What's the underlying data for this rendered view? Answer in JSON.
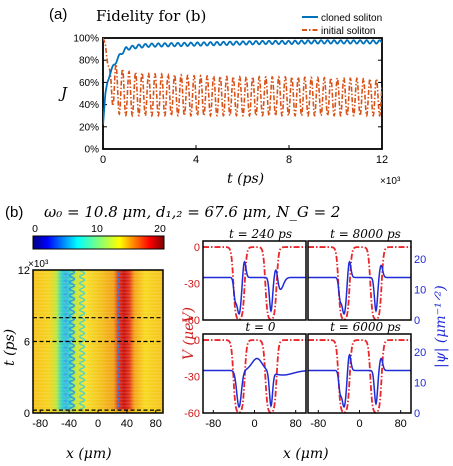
{
  "colors": {
    "cloned": "#0072BD",
    "initial": "#D95319",
    "potential": "#E8262B",
    "psi": "#1F2BD6",
    "axis_red": "#D01A1A",
    "axis_blue": "#1F2BD6"
  },
  "chart_data": [
    {
      "type": "line",
      "panel_label": "(a)",
      "title": "Fidelity for (b)",
      "xlabel": "t (ps)",
      "x_multiplier": "×10³",
      "ylabel": "J",
      "xlim": [
        0,
        12
      ],
      "ylim": [
        0,
        100
      ],
      "xticks": [
        "0",
        "4",
        "8",
        "12"
      ],
      "yticks": [
        "0%",
        "20%",
        "40%",
        "60%",
        "80%",
        "100%"
      ],
      "legend_position": "top-right",
      "series": [
        {
          "name": "cloned soliton",
          "style": "solid",
          "x": [
            0,
            0.1,
            0.2,
            0.3,
            0.4,
            0.5,
            0.6,
            0.8,
            1.0,
            1.5,
            2,
            3,
            4,
            5,
            6,
            7,
            8,
            9,
            10,
            11,
            12
          ],
          "y": [
            25,
            50,
            62,
            70,
            74,
            78,
            82,
            88,
            92,
            94,
            95,
            95.5,
            96,
            96.5,
            97,
            97.5,
            97.5,
            98,
            98,
            98,
            98
          ],
          "oscillation_amplitude": 3
        },
        {
          "name": "initial soliton",
          "style": "dash-dot",
          "x": [
            0,
            0.1,
            0.2,
            0.3,
            0.4,
            0.5,
            0.6,
            1,
            2,
            4,
            6,
            8,
            10,
            12
          ],
          "y_upper": [
            100,
            95,
            80,
            70,
            72,
            78,
            75,
            70,
            68,
            66,
            65,
            65,
            64,
            63
          ],
          "y_lower": [
            100,
            95,
            75,
            55,
            40,
            35,
            32,
            30,
            30,
            30,
            30,
            30,
            30,
            30
          ]
        }
      ]
    },
    {
      "type": "heatmap",
      "panel_label": "(b)",
      "params_title": "ω₀ = 10.8 μm, d₁,₂ = 67.6 μm, N_G = 2",
      "xlabel": "x (μm)",
      "ylabel": "t (ps)",
      "y_multiplier": "×10³",
      "xlim": [
        -90,
        90
      ],
      "ylim": [
        0,
        12
      ],
      "xticks": [
        "-80",
        "-40",
        "0",
        "40",
        "80"
      ],
      "yticks": [
        "0",
        "6",
        "12"
      ],
      "colorbar_ticks": [
        "0",
        "10",
        "20"
      ],
      "colormap": "jet",
      "dashed_lines_t": [
        0.24,
        6.0,
        8.0
      ]
    },
    {
      "type": "line",
      "left_ylabel": "V (μeV)",
      "right_ylabel": "|ψ| (μm⁻¹ᐟ²)",
      "xlabel": "x (μm)",
      "xticks": [
        "-80",
        "0",
        "80"
      ],
      "left_yticks": [
        "0",
        "-30",
        "-60"
      ],
      "right_yticks": [
        "20",
        "10",
        "0"
      ],
      "xlim": [
        -100,
        100
      ],
      "left_ylim": [
        -60,
        5
      ],
      "right_ylim": [
        0,
        26
      ],
      "subplots": [
        {
          "label": "t = 240 ps",
          "wells": [
            -30,
            32
          ]
        },
        {
          "label": "t = 8000 ps",
          "wells": [
            -30,
            32
          ]
        },
        {
          "label": "t = 0",
          "wells": [
            -30,
            32
          ]
        },
        {
          "label": "t = 6000 ps",
          "wells": [
            -30,
            32
          ]
        }
      ]
    }
  ]
}
